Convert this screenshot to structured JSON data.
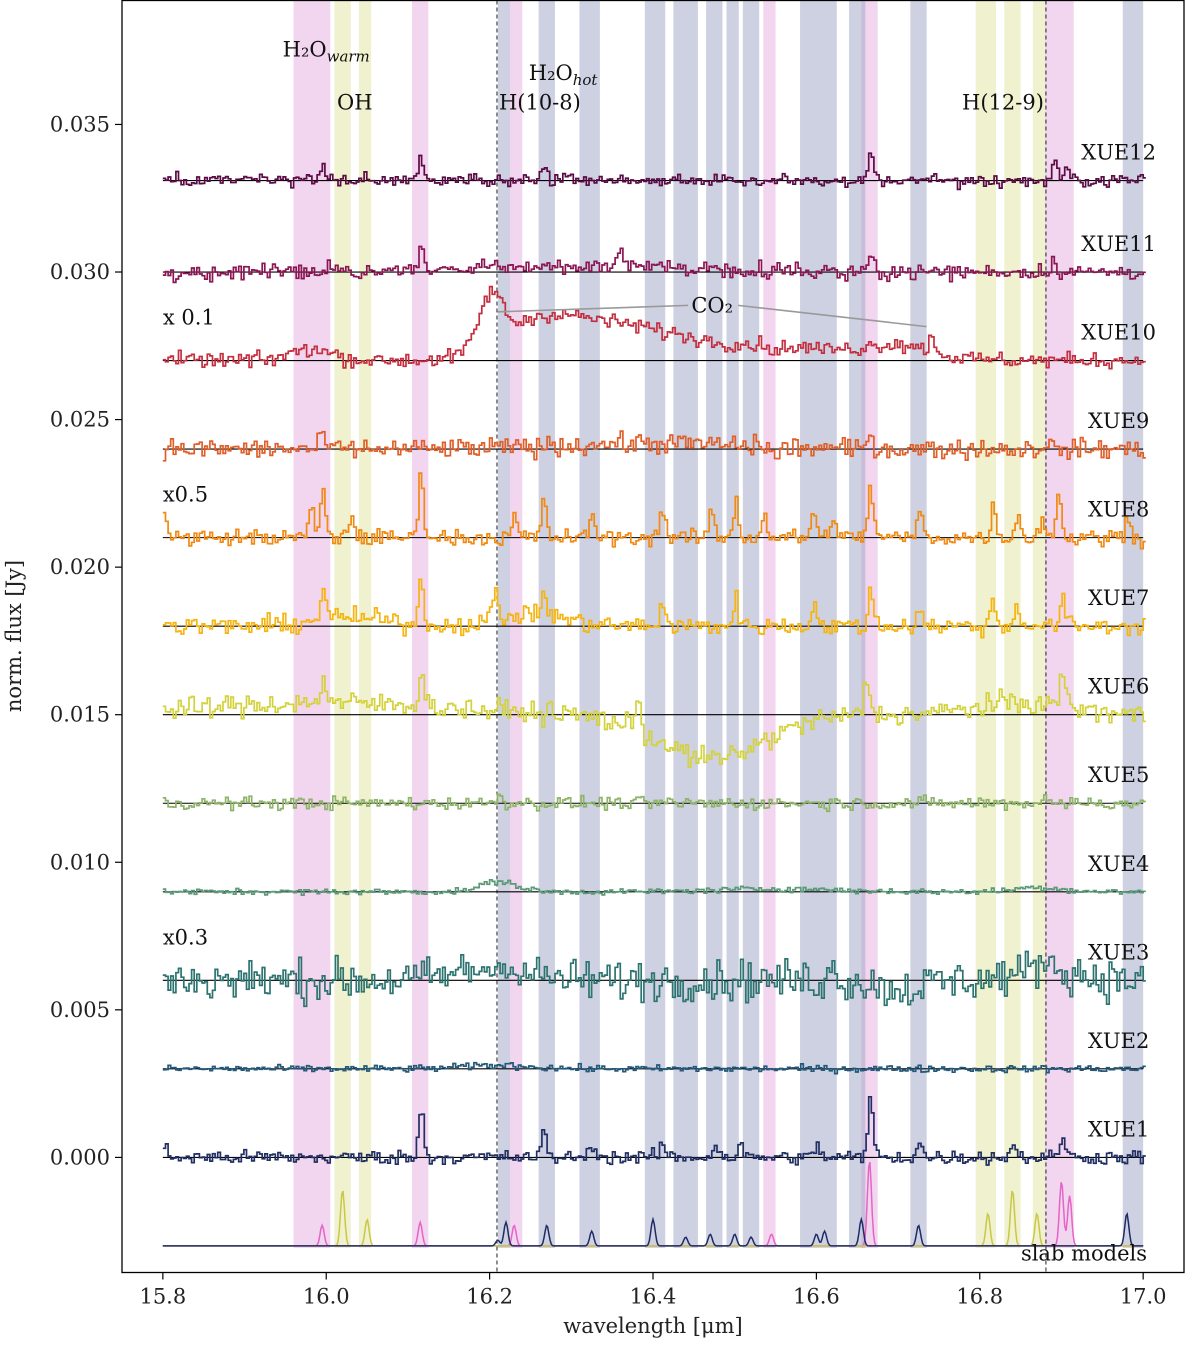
{
  "chart_data": {
    "type": "line",
    "xlabel": "wavelength [μm]",
    "ylabel": "norm. flux [Jy]",
    "xlim": [
      15.75,
      17.05
    ],
    "ylim": [
      -0.0039,
      0.0392
    ],
    "xticks": [
      {
        "value": 15.8,
        "label": "15.8"
      },
      {
        "value": 16.0,
        "label": "16.0"
      },
      {
        "value": 16.2,
        "label": "16.2"
      },
      {
        "value": 16.4,
        "label": "16.4"
      },
      {
        "value": 16.6,
        "label": "16.6"
      },
      {
        "value": 16.8,
        "label": "16.8"
      },
      {
        "value": 17.0,
        "label": "17.0"
      }
    ],
    "yticks": [
      {
        "value": 0.0,
        "label": "0.000"
      },
      {
        "value": 0.005,
        "label": "0.005"
      },
      {
        "value": 0.01,
        "label": "0.010"
      },
      {
        "value": 0.015,
        "label": "0.015"
      },
      {
        "value": 0.02,
        "label": "0.020"
      },
      {
        "value": 0.025,
        "label": "0.025"
      },
      {
        "value": 0.03,
        "label": "0.030"
      },
      {
        "value": 0.035,
        "label": "0.035"
      }
    ],
    "bands": {
      "h2o_warm": {
        "color": "#e8b3e0",
        "ranges": [
          [
            15.96,
            16.005
          ],
          [
            16.105,
            16.125
          ],
          [
            16.225,
            16.24
          ],
          [
            16.535,
            16.55
          ],
          [
            16.655,
            16.675
          ],
          [
            16.88,
            16.915
          ]
        ]
      },
      "oh": {
        "color": "#e3e6a6",
        "ranges": [
          [
            16.01,
            16.03
          ],
          [
            16.04,
            16.055
          ],
          [
            16.795,
            16.82
          ],
          [
            16.83,
            16.85
          ],
          [
            16.865,
            16.88
          ]
        ]
      },
      "h2o_hot": {
        "color": "#a5abc8",
        "ranges": [
          [
            16.21,
            16.225
          ],
          [
            16.26,
            16.28
          ],
          [
            16.31,
            16.335
          ],
          [
            16.39,
            16.415
          ],
          [
            16.425,
            16.455
          ],
          [
            16.465,
            16.485
          ],
          [
            16.49,
            16.505
          ],
          [
            16.51,
            16.53
          ],
          [
            16.58,
            16.625
          ],
          [
            16.64,
            16.66
          ],
          [
            16.715,
            16.735
          ],
          [
            16.975,
            17.0
          ]
        ]
      }
    },
    "vlines": [
      {
        "x": 16.209,
        "label": "H(10-8)"
      },
      {
        "x": 16.881,
        "label": "H(12-9)"
      }
    ],
    "band_labels": [
      {
        "text": "H₂O",
        "sub": "warm",
        "color": "#e47ac9",
        "x": 16.0,
        "y": 0.0373
      },
      {
        "text": "OH",
        "sub": "",
        "color": "#d0d35a",
        "x": 16.035,
        "y": 0.0355
      },
      {
        "text": "H₂O",
        "sub": "hot",
        "color": "#2e3a77",
        "x": 16.29,
        "y": 0.0365
      }
    ],
    "annotations": [
      {
        "text": "CO₂",
        "x": 16.47,
        "y": 0.02887,
        "color": "#8a8a8a",
        "pointers": [
          [
            16.21,
            0.02865
          ],
          [
            16.735,
            0.02815
          ]
        ]
      }
    ],
    "label_x": 16.97,
    "scale_x": 15.8,
    "series": [
      {
        "name": "XUE12",
        "baseline": 0.0331,
        "noise": 0.00011,
        "color": "#5b0b45",
        "scale_note": "",
        "peaks": [
          [
            15.995,
            0.0007
          ],
          [
            16.115,
            0.0007
          ],
          [
            16.265,
            0.0005
          ],
          [
            16.665,
            0.0009
          ],
          [
            16.89,
            0.0007
          ],
          [
            16.905,
            0.0004
          ]
        ],
        "bumps": []
      },
      {
        "name": "XUE11",
        "baseline": 0.03,
        "noise": 0.00013,
        "color": "#8c1654",
        "scale_note": "",
        "peaks": [
          [
            16.115,
            0.0006
          ],
          [
            16.665,
            0.0006
          ],
          [
            16.36,
            0.0004
          ],
          [
            16.89,
            0.0004
          ]
        ],
        "bumps": [
          [
            16.32,
            0.2,
            0.0002
          ]
        ]
      },
      {
        "name": "XUE10",
        "baseline": 0.027,
        "noise": 0.00013,
        "color": "#c42f40",
        "scale_note": "x 0.1",
        "peaks": [
          [
            16.74,
            0.0006
          ],
          [
            16.55,
            -0.0003
          ]
        ],
        "bumps": [
          [
            16.2,
            0.02,
            0.0017
          ],
          [
            16.26,
            0.07,
            0.0012
          ],
          [
            16.36,
            0.09,
            0.0009
          ],
          [
            16.52,
            0.17,
            0.0005
          ],
          [
            16.7,
            0.05,
            0.0004
          ],
          [
            15.98,
            0.035,
            0.0004
          ]
        ]
      },
      {
        "name": "XUE9",
        "baseline": 0.024,
        "noise": 0.00017,
        "color": "#e05f28",
        "scale_note": "",
        "peaks": [
          [
            15.995,
            0.0005
          ],
          [
            16.665,
            0.0005
          ],
          [
            16.55,
            -0.0005
          ],
          [
            16.88,
            0.0003
          ]
        ],
        "bumps": [
          [
            16.4,
            0.15,
            0.0002
          ]
        ]
      },
      {
        "name": "XUE8",
        "baseline": 0.021,
        "noise": 0.00014,
        "color": "#f08a12",
        "scale_note": "x0.5",
        "peaks": [
          [
            15.98,
            0.001
          ],
          [
            15.995,
            0.0016
          ],
          [
            16.03,
            0.0008
          ],
          [
            16.115,
            0.0022
          ],
          [
            16.23,
            0.0007
          ],
          [
            16.265,
            0.0012
          ],
          [
            16.325,
            0.0008
          ],
          [
            16.41,
            0.0011
          ],
          [
            16.47,
            0.0009
          ],
          [
            16.5,
            0.0012
          ],
          [
            16.535,
            0.0008
          ],
          [
            16.595,
            0.0009
          ],
          [
            16.62,
            0.0008
          ],
          [
            16.665,
            0.0018
          ],
          [
            16.725,
            0.0009
          ],
          [
            16.815,
            0.001
          ],
          [
            16.845,
            0.0008
          ],
          [
            16.875,
            0.0007
          ],
          [
            16.895,
            0.0015
          ],
          [
            16.98,
            0.0008
          ],
          [
            15.8,
            0.0009
          ]
        ],
        "bumps": []
      },
      {
        "name": "XUE7",
        "baseline": 0.018,
        "noise": 0.00016,
        "color": "#f5b40f",
        "scale_note": "",
        "peaks": [
          [
            15.995,
            0.0012
          ],
          [
            16.115,
            0.0015
          ],
          [
            16.205,
            0.0009
          ],
          [
            16.265,
            0.0008
          ],
          [
            16.41,
            0.0008
          ],
          [
            16.5,
            0.0009
          ],
          [
            16.595,
            0.0008
          ],
          [
            16.665,
            0.0012
          ],
          [
            16.725,
            0.0007
          ],
          [
            16.815,
            0.0008
          ],
          [
            16.845,
            0.0008
          ],
          [
            16.9,
            0.0009
          ]
        ],
        "bumps": [
          [
            16.03,
            0.06,
            0.0003
          ],
          [
            16.25,
            0.06,
            0.0004
          ]
        ]
      },
      {
        "name": "XUE6",
        "baseline": 0.015,
        "noise": 0.00019,
        "color": "#d3d23c",
        "scale_note": "",
        "peaks": [
          [
            15.995,
            0.0009
          ],
          [
            16.115,
            0.0013
          ],
          [
            16.66,
            0.0013
          ],
          [
            16.9,
            0.0013
          ],
          [
            16.38,
            0.0012
          ]
        ],
        "bumps": [
          [
            16.0,
            0.2,
            0.0004
          ],
          [
            16.47,
            0.09,
            -0.0015
          ],
          [
            16.85,
            0.08,
            0.0004
          ]
        ]
      },
      {
        "name": "XUE5",
        "baseline": 0.012,
        "noise": 0.00011,
        "color": "#8db469",
        "scale_note": "",
        "peaks": [
          [
            16.21,
            0.0003
          ],
          [
            16.88,
            0.0003
          ]
        ],
        "bumps": []
      },
      {
        "name": "XUE4",
        "baseline": 0.009,
        "noise": 5e-05,
        "color": "#5b9a78",
        "scale_note": "",
        "peaks": [],
        "bumps": [
          [
            16.21,
            0.03,
            0.00035
          ],
          [
            16.55,
            0.1,
            0.0001
          ],
          [
            16.87,
            0.04,
            0.00015
          ]
        ]
      },
      {
        "name": "XUE3",
        "baseline": 0.006,
        "noise": 0.00035,
        "color": "#2d7471",
        "scale_note": "x0.3",
        "peaks": [
          [
            16.22,
            0.0005
          ],
          [
            16.62,
            0.0006
          ],
          [
            16.88,
            0.0006
          ]
        ],
        "bumps": [
          [
            16.2,
            0.06,
            0.0004
          ],
          [
            16.88,
            0.05,
            0.0004
          ],
          [
            16.7,
            0.04,
            -0.0003
          ]
        ]
      },
      {
        "name": "XUE2",
        "baseline": 0.003,
        "noise": 6e-05,
        "color": "#235a7c",
        "scale_note": "",
        "peaks": [],
        "bumps": [
          [
            16.21,
            0.06,
            0.00012
          ]
        ]
      },
      {
        "name": "XUE1",
        "baseline": 0.0,
        "noise": 0.00012,
        "color": "#212f63",
        "scale_note": "",
        "peaks": [
          [
            15.8,
            0.0004
          ],
          [
            16.115,
            0.0016
          ],
          [
            16.265,
            0.0008
          ],
          [
            16.325,
            0.0005
          ],
          [
            16.41,
            0.0005
          ],
          [
            16.475,
            0.0005
          ],
          [
            16.505,
            0.0004
          ],
          [
            16.6,
            0.0004
          ],
          [
            16.665,
            0.002
          ],
          [
            16.725,
            0.0005
          ],
          [
            16.84,
            0.0005
          ],
          [
            16.9,
            0.0008
          ]
        ],
        "bumps": []
      }
    ],
    "slab_models": {
      "label": "slab models",
      "baseline": -0.003,
      "components": [
        {
          "name": "H2O warm",
          "color": "#e564c8",
          "peaks": [
            [
              15.995,
              0.0007
            ],
            [
              16.115,
              0.0008
            ],
            [
              16.23,
              0.0007
            ],
            [
              16.545,
              0.0004
            ],
            [
              16.665,
              0.0029
            ],
            [
              16.9,
              0.0022
            ],
            [
              16.91,
              0.0017
            ]
          ]
        },
        {
          "name": "OH",
          "color": "#c9c844",
          "peaks": [
            [
              16.02,
              0.0019
            ],
            [
              16.05,
              0.0009
            ],
            [
              16.81,
              0.0011
            ],
            [
              16.84,
              0.0019
            ],
            [
              16.87,
              0.0011
            ]
          ]
        },
        {
          "name": "H2O hot",
          "color": "#1f2b66",
          "peaks": [
            [
              16.21,
              0.0002
            ],
            [
              16.22,
              0.0008
            ],
            [
              16.27,
              0.0007
            ],
            [
              16.325,
              0.0005
            ],
            [
              16.4,
              0.0009
            ],
            [
              16.44,
              0.0003
            ],
            [
              16.47,
              0.0004
            ],
            [
              16.5,
              0.0004
            ],
            [
              16.52,
              0.0003
            ],
            [
              16.6,
              0.0004
            ],
            [
              16.61,
              0.0005
            ],
            [
              16.655,
              0.0009
            ],
            [
              16.725,
              0.0007
            ],
            [
              16.98,
              0.0011
            ]
          ]
        }
      ]
    }
  }
}
